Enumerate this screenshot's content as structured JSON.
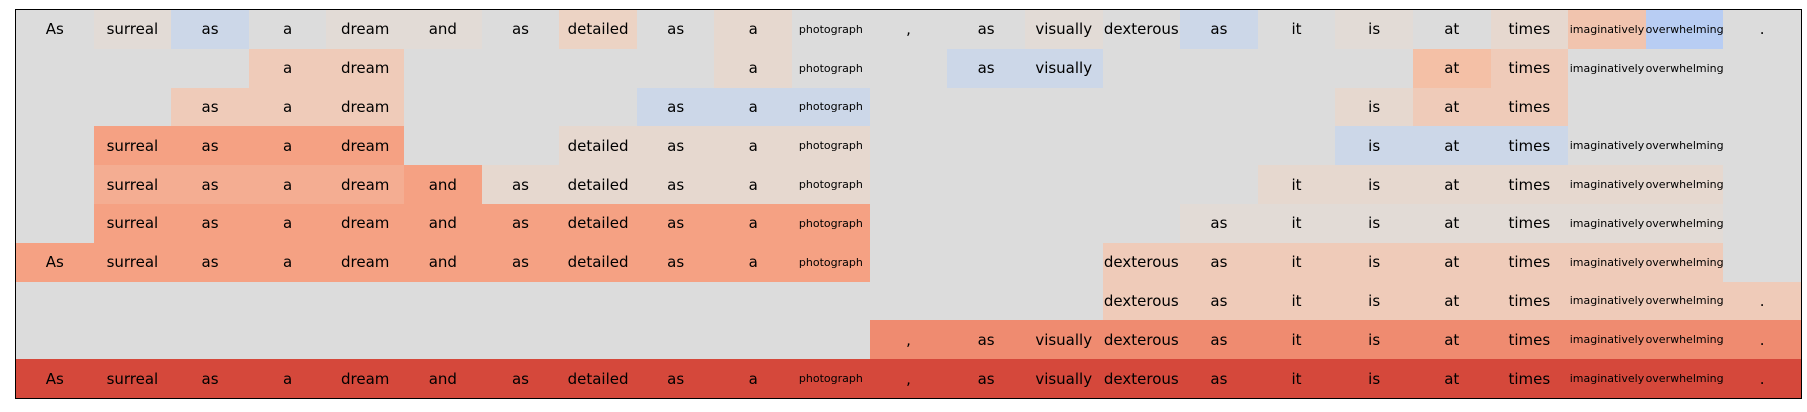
{
  "tokens": [
    "As",
    "surreal",
    "as",
    "a",
    "dream",
    "and",
    "as",
    "detailed",
    "as",
    "a",
    "photograph",
    ",",
    "as",
    "visually",
    "dexterous",
    "as",
    "it",
    "is",
    "at",
    "times",
    "imaginatively",
    "overwhelming",
    "."
  ],
  "colors": {
    "background": "#dcdcdc",
    "blue_pale": "#ccd7e8",
    "blue_medium": "#b8cdf3",
    "neutral_warm": "#e2dbd6",
    "peach_light": "#efcbb9",
    "salmon_light": "#f4ad92",
    "salmon_medium": "#f5a183",
    "salmon_dark": "#ef8b70",
    "red": "#d5483b"
  },
  "rows": [
    {
      "cells": [
        {
          "i": 0,
          "text": "As",
          "color": "#dcdcdc"
        },
        {
          "i": 1,
          "text": "surreal",
          "color": "#e2dbd6"
        },
        {
          "i": 2,
          "text": "as",
          "color": "#ccd7e8"
        },
        {
          "i": 3,
          "text": "a",
          "color": "#dcdcdc"
        },
        {
          "i": 4,
          "text": "dream",
          "color": "#e2dbd6"
        },
        {
          "i": 5,
          "text": "and",
          "color": "#e2dbd6"
        },
        {
          "i": 6,
          "text": "as",
          "color": "#dcdcdc"
        },
        {
          "i": 7,
          "text": "detailed",
          "color": "#ecd3c4"
        },
        {
          "i": 8,
          "text": "as",
          "color": "#dcdcdc"
        },
        {
          "i": 9,
          "text": "a",
          "color": "#e6d8cf"
        },
        {
          "i": 10,
          "text": "photograph",
          "color": "#dcdcdc"
        },
        {
          "i": 11,
          "text": ",",
          "color": "#dcdcdc"
        },
        {
          "i": 12,
          "text": "as",
          "color": "#dcdcdc"
        },
        {
          "i": 13,
          "text": "visually",
          "color": "#e2dbd6"
        },
        {
          "i": 14,
          "text": "dexterous",
          "color": "#dcdcdc"
        },
        {
          "i": 15,
          "text": "as",
          "color": "#ccd7e8"
        },
        {
          "i": 16,
          "text": "it",
          "color": "#dcdcdc"
        },
        {
          "i": 17,
          "text": "is",
          "color": "#e2dbd6"
        },
        {
          "i": 18,
          "text": "at",
          "color": "#dcdcdc"
        },
        {
          "i": 19,
          "text": "times",
          "color": "#e6d8cf"
        },
        {
          "i": 20,
          "text": "imaginatively",
          "color": "#f1c4ae"
        },
        {
          "i": 21,
          "text": "overwhelming",
          "color": "#b8cdf3"
        },
        {
          "i": 22,
          "text": ".",
          "color": "#dcdcdc"
        }
      ]
    },
    {
      "cells": [
        {
          "i": 3,
          "text": "a",
          "color": "#efcbb9"
        },
        {
          "i": 4,
          "text": "dream",
          "color": "#efcbb9"
        },
        {
          "i": 9,
          "text": "a",
          "color": "#e6d8cf"
        },
        {
          "i": 10,
          "text": "photograph",
          "color": "#dcdcdc"
        },
        {
          "i": 12,
          "text": "as",
          "color": "#ccd7e8"
        },
        {
          "i": 13,
          "text": "visually",
          "color": "#ccd7e8"
        },
        {
          "i": 18,
          "text": "at",
          "color": "#f4c0a6"
        },
        {
          "i": 19,
          "text": "times",
          "color": "#efcbb9"
        },
        {
          "i": 20,
          "text": "imaginatively",
          "color": "#dcdcdc"
        },
        {
          "i": 21,
          "text": "overwhelming",
          "color": "#dcdcdc"
        }
      ]
    },
    {
      "cells": [
        {
          "i": 2,
          "text": "as",
          "color": "#efcbb9"
        },
        {
          "i": 3,
          "text": "a",
          "color": "#efcbb9"
        },
        {
          "i": 4,
          "text": "dream",
          "color": "#efcbb9"
        },
        {
          "i": 8,
          "text": "as",
          "color": "#ccd7e8"
        },
        {
          "i": 9,
          "text": "a",
          "color": "#ccd7e8"
        },
        {
          "i": 10,
          "text": "photograph",
          "color": "#ccd7e8"
        },
        {
          "i": 17,
          "text": "is",
          "color": "#e6d8cf"
        },
        {
          "i": 18,
          "text": "at",
          "color": "#efcbb9"
        },
        {
          "i": 19,
          "text": "times",
          "color": "#efcbb9"
        }
      ]
    },
    {
      "cells": [
        {
          "i": 1,
          "text": "surreal",
          "color": "#f5a183"
        },
        {
          "i": 2,
          "text": "as",
          "color": "#f5a183"
        },
        {
          "i": 3,
          "text": "a",
          "color": "#f5a183"
        },
        {
          "i": 4,
          "text": "dream",
          "color": "#f5a183"
        },
        {
          "i": 7,
          "text": "detailed",
          "color": "#e6d8cf"
        },
        {
          "i": 8,
          "text": "as",
          "color": "#e6d8cf"
        },
        {
          "i": 9,
          "text": "a",
          "color": "#e6d8cf"
        },
        {
          "i": 10,
          "text": "photograph",
          "color": "#e6d8cf"
        },
        {
          "i": 17,
          "text": "is",
          "color": "#ccd7e8"
        },
        {
          "i": 18,
          "text": "at",
          "color": "#ccd7e8"
        },
        {
          "i": 19,
          "text": "times",
          "color": "#ccd7e8"
        },
        {
          "i": 20,
          "text": "imaginatively",
          "color": "#dcdcdc"
        },
        {
          "i": 21,
          "text": "overwhelming",
          "color": "#dcdcdc"
        }
      ]
    },
    {
      "cells": [
        {
          "i": 1,
          "text": "surreal",
          "color": "#f4ad92"
        },
        {
          "i": 2,
          "text": "as",
          "color": "#f4ad92"
        },
        {
          "i": 3,
          "text": "a",
          "color": "#f4ad92"
        },
        {
          "i": 4,
          "text": "dream",
          "color": "#f4ad92"
        },
        {
          "i": 5,
          "text": "and",
          "color": "#f5a183"
        },
        {
          "i": 6,
          "text": "as",
          "color": "#e6d8cf"
        },
        {
          "i": 7,
          "text": "detailed",
          "color": "#e6d8cf"
        },
        {
          "i": 8,
          "text": "as",
          "color": "#e6d8cf"
        },
        {
          "i": 9,
          "text": "a",
          "color": "#e6d8cf"
        },
        {
          "i": 10,
          "text": "photograph",
          "color": "#e6d8cf"
        },
        {
          "i": 16,
          "text": "it",
          "color": "#e6d8cf"
        },
        {
          "i": 17,
          "text": "is",
          "color": "#e6d8cf"
        },
        {
          "i": 18,
          "text": "at",
          "color": "#e6d8cf"
        },
        {
          "i": 19,
          "text": "times",
          "color": "#e6d8cf"
        },
        {
          "i": 20,
          "text": "imaginatively",
          "color": "#e6d8cf"
        },
        {
          "i": 21,
          "text": "overwhelming",
          "color": "#e6d8cf"
        }
      ]
    },
    {
      "cells": [
        {
          "i": 1,
          "text": "surreal",
          "color": "#f5a183"
        },
        {
          "i": 2,
          "text": "as",
          "color": "#f5a183"
        },
        {
          "i": 3,
          "text": "a",
          "color": "#f5a183"
        },
        {
          "i": 4,
          "text": "dream",
          "color": "#f5a183"
        },
        {
          "i": 5,
          "text": "and",
          "color": "#f5a183"
        },
        {
          "i": 6,
          "text": "as",
          "color": "#f5a183"
        },
        {
          "i": 7,
          "text": "detailed",
          "color": "#f5a183"
        },
        {
          "i": 8,
          "text": "as",
          "color": "#f5a183"
        },
        {
          "i": 9,
          "text": "a",
          "color": "#f5a183"
        },
        {
          "i": 10,
          "text": "photograph",
          "color": "#f5a183"
        },
        {
          "i": 15,
          "text": "as",
          "color": "#e2dbd6"
        },
        {
          "i": 16,
          "text": "it",
          "color": "#e2dbd6"
        },
        {
          "i": 17,
          "text": "is",
          "color": "#e2dbd6"
        },
        {
          "i": 18,
          "text": "at",
          "color": "#e2dbd6"
        },
        {
          "i": 19,
          "text": "times",
          "color": "#e2dbd6"
        },
        {
          "i": 20,
          "text": "imaginatively",
          "color": "#e2dbd6"
        },
        {
          "i": 21,
          "text": "overwhelming",
          "color": "#e2dbd6"
        }
      ]
    },
    {
      "cells": [
        {
          "i": 0,
          "text": "As",
          "color": "#f5a183"
        },
        {
          "i": 1,
          "text": "surreal",
          "color": "#f5a183"
        },
        {
          "i": 2,
          "text": "as",
          "color": "#f5a183"
        },
        {
          "i": 3,
          "text": "a",
          "color": "#f5a183"
        },
        {
          "i": 4,
          "text": "dream",
          "color": "#f5a183"
        },
        {
          "i": 5,
          "text": "and",
          "color": "#f5a183"
        },
        {
          "i": 6,
          "text": "as",
          "color": "#f5a183"
        },
        {
          "i": 7,
          "text": "detailed",
          "color": "#f5a183"
        },
        {
          "i": 8,
          "text": "as",
          "color": "#f5a183"
        },
        {
          "i": 9,
          "text": "a",
          "color": "#f5a183"
        },
        {
          "i": 10,
          "text": "photograph",
          "color": "#f5a183"
        },
        {
          "i": 14,
          "text": "dexterous",
          "color": "#efcbb9"
        },
        {
          "i": 15,
          "text": "as",
          "color": "#efcbb9"
        },
        {
          "i": 16,
          "text": "it",
          "color": "#efcbb9"
        },
        {
          "i": 17,
          "text": "is",
          "color": "#efcbb9"
        },
        {
          "i": 18,
          "text": "at",
          "color": "#efcbb9"
        },
        {
          "i": 19,
          "text": "times",
          "color": "#efcbb9"
        },
        {
          "i": 20,
          "text": "imaginatively",
          "color": "#efcbb9"
        },
        {
          "i": 21,
          "text": "overwhelming",
          "color": "#efcbb9"
        }
      ]
    },
    {
      "cells": [
        {
          "i": 14,
          "text": "dexterous",
          "color": "#efcbb9"
        },
        {
          "i": 15,
          "text": "as",
          "color": "#efcbb9"
        },
        {
          "i": 16,
          "text": "it",
          "color": "#efcbb9"
        },
        {
          "i": 17,
          "text": "is",
          "color": "#efcbb9"
        },
        {
          "i": 18,
          "text": "at",
          "color": "#efcbb9"
        },
        {
          "i": 19,
          "text": "times",
          "color": "#efcbb9"
        },
        {
          "i": 20,
          "text": "imaginatively",
          "color": "#efcbb9"
        },
        {
          "i": 21,
          "text": "overwhelming",
          "color": "#efcbb9"
        },
        {
          "i": 22,
          "text": ".",
          "color": "#efcbb9"
        }
      ]
    },
    {
      "cells": [
        {
          "i": 11,
          "text": ",",
          "color": "#ef8b70"
        },
        {
          "i": 12,
          "text": "as",
          "color": "#ef8b70"
        },
        {
          "i": 13,
          "text": "visually",
          "color": "#ef8b70"
        },
        {
          "i": 14,
          "text": "dexterous",
          "color": "#ef8b70"
        },
        {
          "i": 15,
          "text": "as",
          "color": "#ef8b70"
        },
        {
          "i": 16,
          "text": "it",
          "color": "#ef8b70"
        },
        {
          "i": 17,
          "text": "is",
          "color": "#ef8b70"
        },
        {
          "i": 18,
          "text": "at",
          "color": "#ef8b70"
        },
        {
          "i": 19,
          "text": "times",
          "color": "#ef8b70"
        },
        {
          "i": 20,
          "text": "imaginatively",
          "color": "#ef8b70"
        },
        {
          "i": 21,
          "text": "overwhelming",
          "color": "#ef8b70"
        },
        {
          "i": 22,
          "text": ".",
          "color": "#ef8b70"
        }
      ]
    },
    {
      "cells": [
        {
          "i": 0,
          "text": "As",
          "color": "#d5483b"
        },
        {
          "i": 1,
          "text": "surreal",
          "color": "#d5483b"
        },
        {
          "i": 2,
          "text": "as",
          "color": "#d5483b"
        },
        {
          "i": 3,
          "text": "a",
          "color": "#d5483b"
        },
        {
          "i": 4,
          "text": "dream",
          "color": "#d5483b"
        },
        {
          "i": 5,
          "text": "and",
          "color": "#d5483b"
        },
        {
          "i": 6,
          "text": "as",
          "color": "#d5483b"
        },
        {
          "i": 7,
          "text": "detailed",
          "color": "#d5483b"
        },
        {
          "i": 8,
          "text": "as",
          "color": "#d5483b"
        },
        {
          "i": 9,
          "text": "a",
          "color": "#d5483b"
        },
        {
          "i": 10,
          "text": "photograph",
          "color": "#d5483b"
        },
        {
          "i": 11,
          "text": ",",
          "color": "#d5483b"
        },
        {
          "i": 12,
          "text": "as",
          "color": "#d5483b"
        },
        {
          "i": 13,
          "text": "visually",
          "color": "#d5483b"
        },
        {
          "i": 14,
          "text": "dexterous",
          "color": "#d5483b"
        },
        {
          "i": 15,
          "text": "as",
          "color": "#d5483b"
        },
        {
          "i": 16,
          "text": "it",
          "color": "#d5483b"
        },
        {
          "i": 17,
          "text": "is",
          "color": "#d5483b"
        },
        {
          "i": 18,
          "text": "at",
          "color": "#d5483b"
        },
        {
          "i": 19,
          "text": "times",
          "color": "#d5483b"
        },
        {
          "i": 20,
          "text": "imaginatively",
          "color": "#d5483b"
        },
        {
          "i": 21,
          "text": "overwhelming",
          "color": "#d5483b"
        },
        {
          "i": 22,
          "text": ".",
          "color": "#d5483b"
        }
      ]
    }
  ]
}
